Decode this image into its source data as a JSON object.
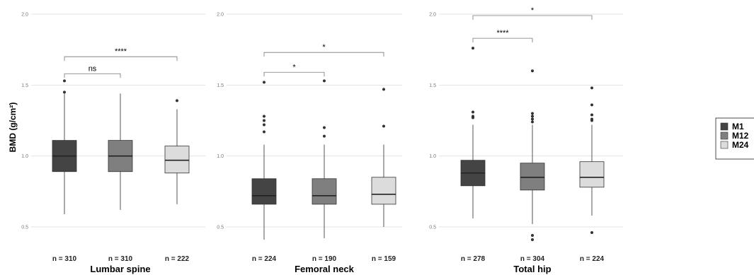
{
  "chart_data": {
    "type": "box",
    "ylabel": "BMD (g/cm²)",
    "ylim": [
      0.5,
      2.0
    ],
    "yticks": [
      "0.5",
      "1.0",
      "1.5",
      "2.0"
    ],
    "grid": true,
    "legend_position": "right",
    "series": [
      {
        "name": "M1",
        "color": "#444444"
      },
      {
        "name": "M12",
        "color": "#7f7f7f"
      },
      {
        "name": "M24",
        "color": "#dcdcdc"
      }
    ],
    "panels": [
      {
        "title": "Lumbar spine",
        "groups": [
          {
            "series": "M1",
            "n": "n = 310",
            "whisker_low": 0.59,
            "q1": 0.89,
            "median": 1.0,
            "q3": 1.11,
            "whisker_high": 1.44,
            "outliers": [
              1.45,
              1.53
            ]
          },
          {
            "series": "M12",
            "n": "n = 310",
            "whisker_low": 0.62,
            "q1": 0.89,
            "median": 1.0,
            "q3": 1.11,
            "whisker_high": 1.44,
            "outliers": []
          },
          {
            "series": "M24",
            "n": "n = 222",
            "whisker_low": 0.66,
            "q1": 0.88,
            "median": 0.97,
            "q3": 1.07,
            "whisker_high": 1.33,
            "outliers": [
              1.39
            ]
          }
        ],
        "comparisons": [
          {
            "from": "M1",
            "to": "M12",
            "label": "ns",
            "level": 1.58
          },
          {
            "from": "M1",
            "to": "M24",
            "label": "****",
            "level": 1.7
          }
        ]
      },
      {
        "title": "Femoral neck",
        "groups": [
          {
            "series": "M1",
            "n": "n = 224",
            "whisker_low": 0.41,
            "q1": 0.66,
            "median": 0.72,
            "q3": 0.84,
            "whisker_high": 1.08,
            "outliers": [
              1.17,
              1.22,
              1.25,
              1.28,
              1.52
            ]
          },
          {
            "series": "M12",
            "n": "n = 190",
            "whisker_low": 0.42,
            "q1": 0.66,
            "median": 0.72,
            "q3": 0.84,
            "whisker_high": 1.08,
            "outliers": [
              1.14,
              1.2,
              1.53
            ]
          },
          {
            "series": "M24",
            "n": "n = 159",
            "whisker_low": 0.5,
            "q1": 0.66,
            "median": 0.73,
            "q3": 0.85,
            "whisker_high": 1.08,
            "outliers": [
              1.21,
              1.47
            ]
          }
        ],
        "comparisons": [
          {
            "from": "M1",
            "to": "M12",
            "label": "*",
            "level": 1.59
          },
          {
            "from": "M1",
            "to": "M24",
            "label": "*",
            "level": 1.73
          }
        ]
      },
      {
        "title": "Total hip",
        "groups": [
          {
            "series": "M1",
            "n": "n = 278",
            "whisker_low": 0.56,
            "q1": 0.79,
            "median": 0.88,
            "q3": 0.97,
            "whisker_high": 1.22,
            "outliers": [
              1.27,
              1.28,
              1.31,
              1.76
            ]
          },
          {
            "series": "M12",
            "n": "n = 304",
            "whisker_low": 0.52,
            "q1": 0.76,
            "median": 0.85,
            "q3": 0.95,
            "whisker_high": 1.22,
            "outliers": [
              0.41,
              0.44,
              1.24,
              1.26,
              1.28,
              1.3,
              1.6
            ]
          },
          {
            "series": "M24",
            "n": "n = 224",
            "whisker_low": 0.58,
            "q1": 0.78,
            "median": 0.85,
            "q3": 0.96,
            "whisker_high": 1.22,
            "outliers": [
              0.46,
              1.25,
              1.26,
              1.29,
              1.36,
              1.48
            ]
          }
        ],
        "comparisons": [
          {
            "from": "M1",
            "to": "M12",
            "label": "****",
            "level": 1.83
          },
          {
            "from": "M1",
            "to": "M24",
            "label": "*",
            "level": 1.99
          }
        ]
      }
    ]
  }
}
